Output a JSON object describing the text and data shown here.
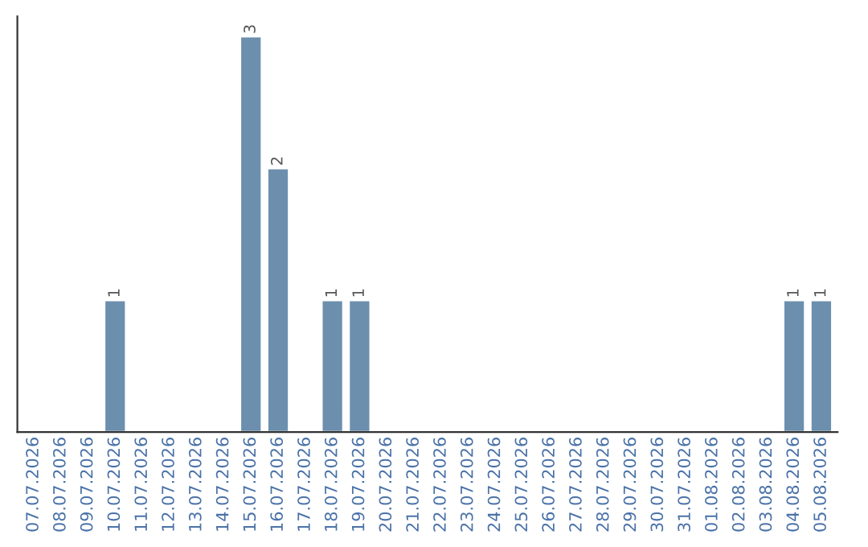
{
  "chart_data": {
    "type": "bar",
    "categories": [
      "07.07.2026",
      "08.07.2026",
      "09.07.2026",
      "10.07.2026",
      "11.07.2026",
      "12.07.2026",
      "13.07.2026",
      "14.07.2026",
      "15.07.2026",
      "16.07.2026",
      "17.07.2026",
      "18.07.2026",
      "19.07.2026",
      "20.07.2026",
      "21.07.2026",
      "22.07.2026",
      "23.07.2026",
      "24.07.2026",
      "25.07.2026",
      "26.07.2026",
      "27.07.2026",
      "28.07.2026",
      "29.07.2026",
      "30.07.2026",
      "31.07.2026",
      "01.08.2026",
      "02.08.2026",
      "03.08.2026",
      "04.08.2026",
      "05.08.2026"
    ],
    "values": [
      null,
      null,
      null,
      1,
      null,
      null,
      null,
      null,
      3,
      2,
      null,
      1,
      1,
      null,
      null,
      null,
      null,
      null,
      null,
      null,
      null,
      null,
      null,
      null,
      null,
      null,
      null,
      null,
      1,
      1
    ],
    "value_labels": [
      null,
      null,
      null,
      "1",
      null,
      null,
      null,
      null,
      "3",
      "2",
      null,
      "1",
      "1",
      null,
      null,
      null,
      null,
      null,
      null,
      null,
      null,
      null,
      null,
      null,
      null,
      null,
      null,
      null,
      "1",
      "1"
    ],
    "color": "#6d8fae",
    "tick_labels": "x",
    "grid": false,
    "legend": false
  }
}
